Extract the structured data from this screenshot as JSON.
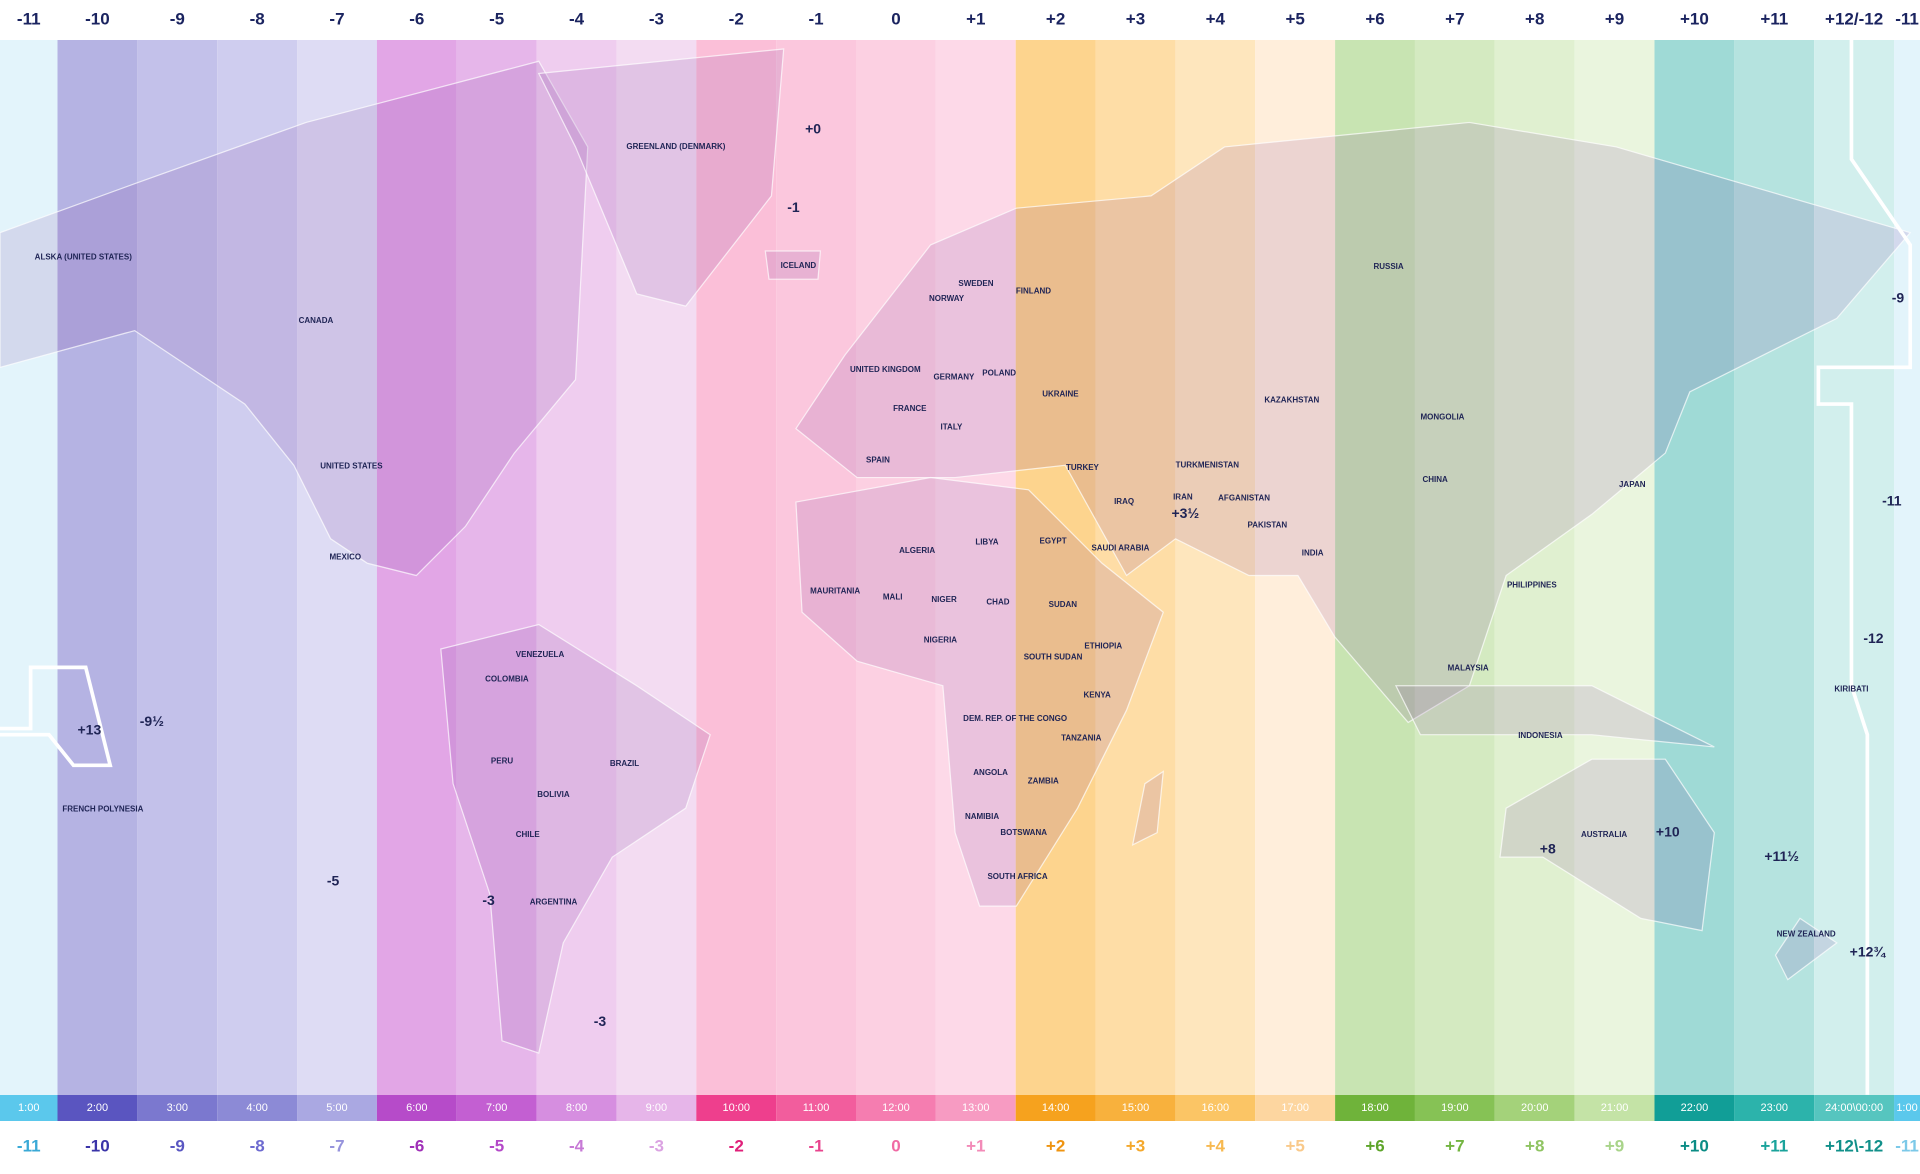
{
  "zones": [
    {
      "top": "-11",
      "time": "1:00",
      "bottom": "-11"
    },
    {
      "top": "-10",
      "time": "2:00",
      "bottom": "-10"
    },
    {
      "top": "-9",
      "time": "3:00",
      "bottom": "-9"
    },
    {
      "top": "-8",
      "time": "4:00",
      "bottom": "-8"
    },
    {
      "top": "-7",
      "time": "5:00",
      "bottom": "-7"
    },
    {
      "top": "-6",
      "time": "6:00",
      "bottom": "-6"
    },
    {
      "top": "-5",
      "time": "7:00",
      "bottom": "-5"
    },
    {
      "top": "-4",
      "time": "8:00",
      "bottom": "-4"
    },
    {
      "top": "-3",
      "time": "9:00",
      "bottom": "-3"
    },
    {
      "top": "-2",
      "time": "10:00",
      "bottom": "-2"
    },
    {
      "top": "-1",
      "time": "11:00",
      "bottom": "-1"
    },
    {
      "top": "0",
      "time": "12:00",
      "bottom": "0"
    },
    {
      "top": "+1",
      "time": "13:00",
      "bottom": "+1"
    },
    {
      "top": "+2",
      "time": "14:00",
      "bottom": "+2"
    },
    {
      "top": "+3",
      "time": "15:00",
      "bottom": "+3"
    },
    {
      "top": "+4",
      "time": "16:00",
      "bottom": "+4"
    },
    {
      "top": "+5",
      "time": "17:00",
      "bottom": "+5"
    },
    {
      "top": "+6",
      "time": "18:00",
      "bottom": "+6"
    },
    {
      "top": "+7",
      "time": "19:00",
      "bottom": "+7"
    },
    {
      "top": "+8",
      "time": "20:00",
      "bottom": "+8"
    },
    {
      "top": "+9",
      "time": "21:00",
      "bottom": "+9"
    },
    {
      "top": "+10",
      "time": "22:00",
      "bottom": "+10"
    },
    {
      "top": "+11",
      "time": "23:00",
      "bottom": "+11"
    },
    {
      "top": "+12/-12",
      "time": "24:00\\00:00",
      "bottom": "+12\\-12"
    },
    {
      "top": "-11",
      "time": "1:00",
      "bottom": "-11"
    }
  ],
  "regions": [
    "ALSKA (UNITED STATES)",
    "CANADA",
    "UNITED STATES",
    "MEXICO",
    "GREENLAND (DENMARK)",
    "ICELAND",
    "UNITED KINGDOM",
    "FRANCE",
    "SPAIN",
    "GERMANY",
    "ITALY",
    "POLAND",
    "NORWAY",
    "SWEDEN",
    "FINLAND",
    "UKRAINE",
    "TURKEY",
    "ALGERIA",
    "LIBYA",
    "EGYPT",
    "MAURITANIA",
    "MALI",
    "NIGER",
    "CHAD",
    "NIGERIA",
    "SUDAN",
    "ETHIOPIA",
    "SOUTH SUDAN",
    "DEM. REP. OF THE CONGO",
    "TANZANIA",
    "ANGOLA",
    "ZAMBIA",
    "NAMIBIA",
    "BOTSWANA",
    "SOUTH AFRICA",
    "KENYA",
    "SAUDI ARABIA",
    "IRAQ",
    "IRAN",
    "TURKMENISTAN",
    "KAZAKHSTAN",
    "RUSSIA",
    "MONGOLIA",
    "CHINA",
    "INDIA",
    "PAKISTAN",
    "AFGANISTAN",
    "PHILIPPINES",
    "MALAYSIA",
    "INDONESIA",
    "JAPAN",
    "AUSTRALIA",
    "NEW ZEALAND",
    "BRAZIL",
    "COLOMBIA",
    "PERU",
    "BOLIVIA",
    "ARGENTINA",
    "CHILE",
    "VENEZUELA",
    "FRENCH POLYNESIA",
    "KIRIBATI"
  ],
  "annotations": [
    "+0",
    "-1",
    "-9½",
    "+13",
    "-5",
    "-3",
    "-3",
    "+3½",
    "+8",
    "+10",
    "+11½",
    "-11",
    "-12",
    "-9",
    "+12¾"
  ]
}
